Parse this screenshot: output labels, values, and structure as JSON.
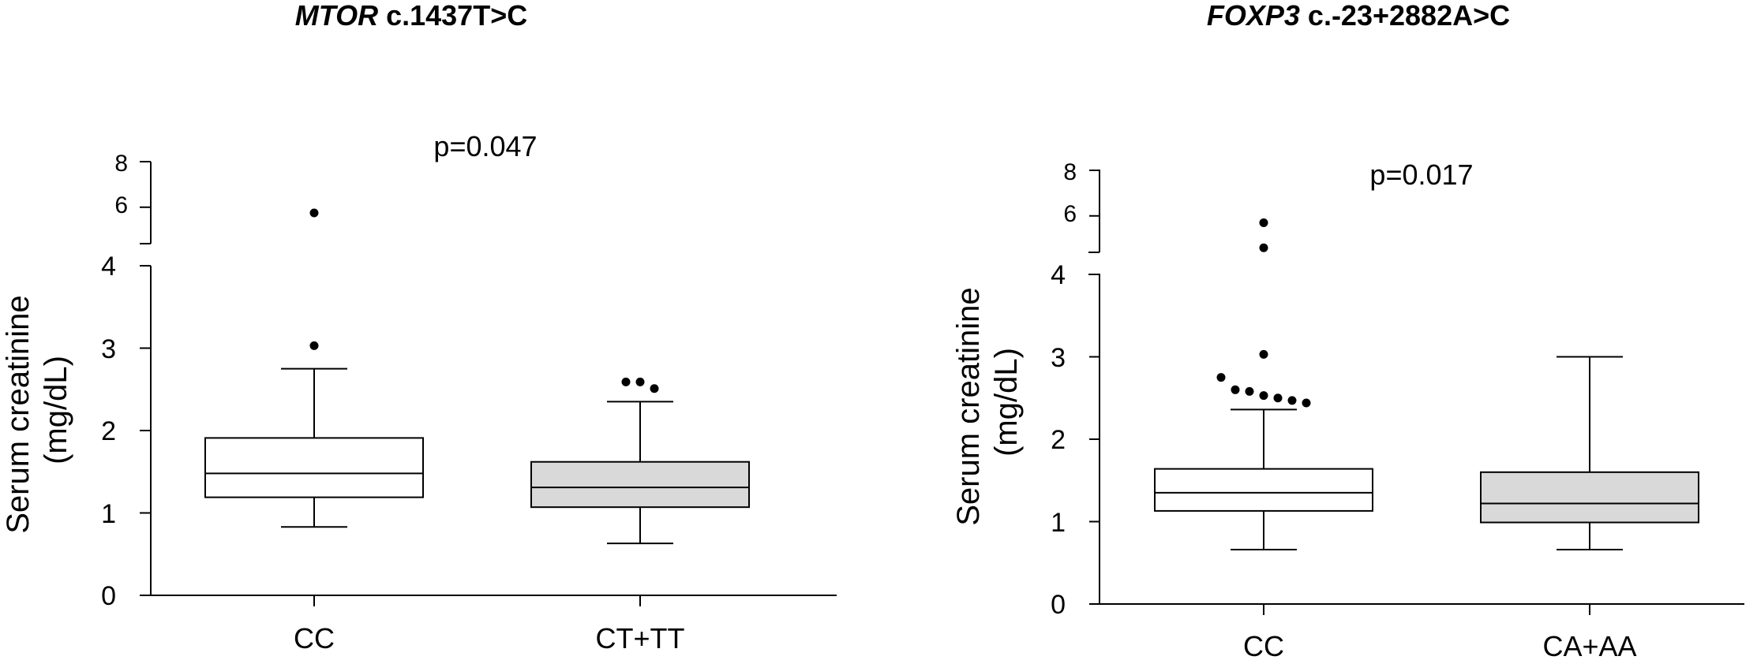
{
  "chart_data": [
    {
      "type": "box",
      "title": {
        "gene": "MTOR",
        "variant": " c.1437T>C"
      },
      "annotation": "p=0.047",
      "ylabel": [
        "Serum creatinine",
        "(mg/dL)"
      ],
      "categories": [
        "CC",
        "CT+TT"
      ],
      "yticks_lower": [
        "0",
        "1",
        "2",
        "3",
        "4"
      ],
      "yticks_upper": [
        "6",
        "8"
      ],
      "axis_break": {
        "lower_range": [
          0,
          4
        ],
        "upper_range": [
          4.4,
          8
        ]
      },
      "grid": false,
      "boxes": [
        {
          "name": "CC",
          "fill": "#ffffff",
          "whisker_low": 0.83,
          "q1": 1.19,
          "median": 1.48,
          "q3": 1.91,
          "whisker_high": 2.75,
          "outliers": [
            3.03,
            5.75
          ]
        },
        {
          "name": "CT+TT",
          "fill": "#d9d9d9",
          "whisker_low": 0.63,
          "q1": 1.07,
          "median": 1.31,
          "q3": 1.62,
          "whisker_high": 2.35,
          "outliers": [
            2.51,
            2.59,
            2.59
          ]
        }
      ]
    },
    {
      "type": "box",
      "title": {
        "gene": "FOXP3",
        "variant": " c.-23+2882A>C"
      },
      "annotation": "p=0.017",
      "ylabel": [
        "Serum creatinine",
        "(mg/dL)"
      ],
      "categories": [
        "CC",
        "CA+AA"
      ],
      "yticks_lower": [
        "0",
        "1",
        "2",
        "3",
        "4"
      ],
      "yticks_upper": [
        "6",
        "8"
      ],
      "axis_break": {
        "lower_range": [
          0,
          4
        ],
        "upper_range": [
          4.4,
          8
        ]
      },
      "grid": false,
      "boxes": [
        {
          "name": "CC",
          "fill": "#ffffff",
          "whisker_low": 0.66,
          "q1": 1.13,
          "median": 1.35,
          "q3": 1.64,
          "whisker_high": 2.36,
          "outliers": [
            2.44,
            2.47,
            2.5,
            2.53,
            2.58,
            2.6,
            2.75,
            3.03,
            4.6,
            5.7
          ]
        },
        {
          "name": "CA+AA",
          "fill": "#d9d9d9",
          "whisker_low": 0.66,
          "q1": 0.99,
          "median": 1.22,
          "q3": 1.6,
          "whisker_high": 3.0,
          "outliers": []
        }
      ]
    }
  ]
}
